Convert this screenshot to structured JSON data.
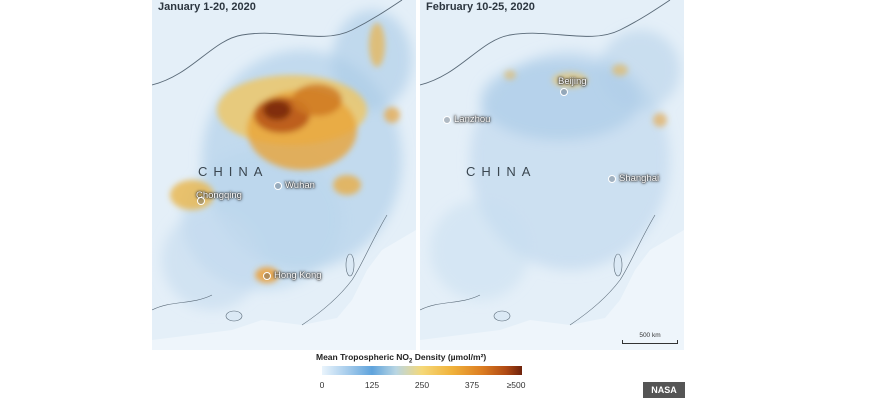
{
  "panels": [
    {
      "title": "January 1-20, 2020",
      "country_label": "CHINA",
      "cities": [
        "Chongqing",
        "Wuhan",
        "Hong Kong"
      ]
    },
    {
      "title": "February 10-25, 2020",
      "country_label": "CHINA",
      "cities": [
        "Beijing",
        "Lanzhou",
        "Shanghai"
      ],
      "scale_bar": "500 km"
    }
  ],
  "legend": {
    "title_main": "Mean Tropospheric NO",
    "title_sub": "2",
    "title_rest": " Density (µmol/m²)",
    "ticks": [
      "0",
      "125",
      "250",
      "375",
      "≥500"
    ],
    "colors": [
      "#eaf4fc",
      "#5fa3dc",
      "#f5d878",
      "#dc7d22",
      "#6e220c"
    ]
  },
  "credit": "NASA"
}
